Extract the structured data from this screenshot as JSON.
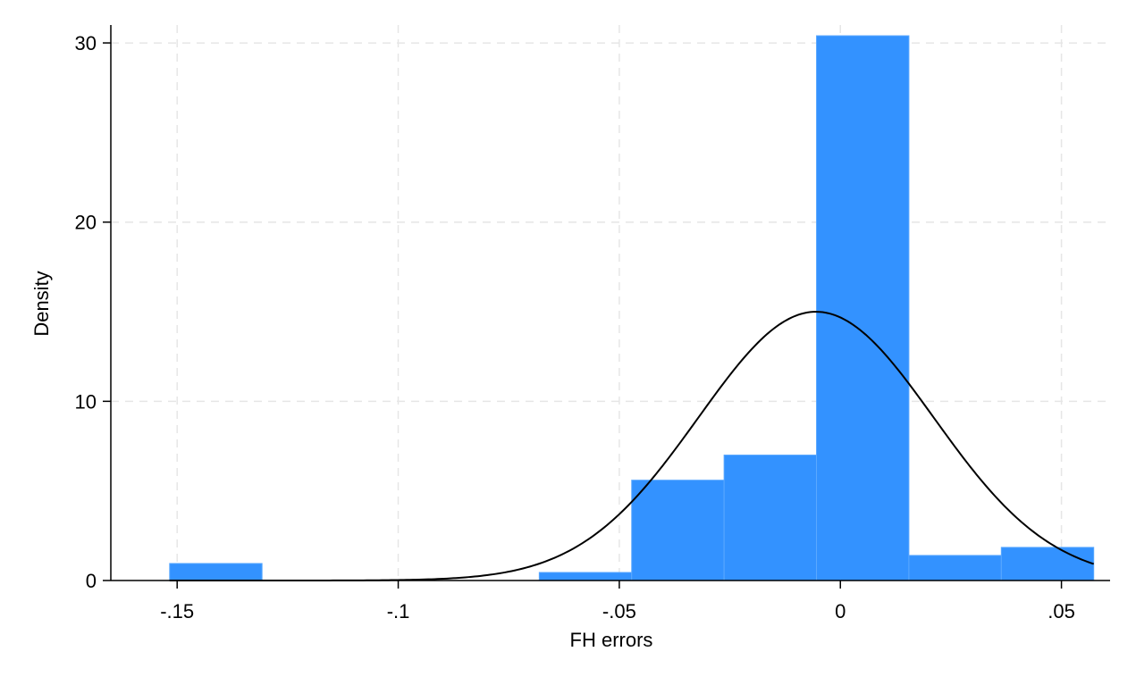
{
  "chart_data": {
    "type": "bar",
    "subtype": "histogram with normal density overlay",
    "title": "",
    "xlabel": "FH errors",
    "ylabel": "Density",
    "xlim": [
      -0.165,
      0.061
    ],
    "ylim": [
      0,
      31
    ],
    "x_ticks": [
      -0.15,
      -0.1,
      -0.05,
      0,
      0.05
    ],
    "x_tick_labels": [
      "-.15",
      "-.1",
      "-.05",
      "0",
      ".05"
    ],
    "y_ticks": [
      0,
      10,
      20,
      30
    ],
    "y_tick_labels": [
      "0",
      "10",
      "20",
      "30"
    ],
    "grid": true,
    "grid_style": "dashed",
    "legend": "none",
    "bar_color": "#3392ff",
    "bar_edge_color": "#5aa8ff",
    "bins": [
      {
        "x0": -0.1517,
        "x1": -0.1308,
        "density": 0.95
      },
      {
        "x0": -0.1308,
        "x1": -0.1099,
        "density": 0
      },
      {
        "x0": -0.1099,
        "x1": -0.089,
        "density": 0
      },
      {
        "x0": -0.089,
        "x1": -0.0681,
        "density": 0
      },
      {
        "x0": -0.0681,
        "x1": -0.0472,
        "density": 0.45
      },
      {
        "x0": -0.0472,
        "x1": -0.0263,
        "density": 5.6
      },
      {
        "x0": -0.0263,
        "x1": -0.0054,
        "density": 7.0
      },
      {
        "x0": -0.0054,
        "x1": 0.0155,
        "density": 30.4
      },
      {
        "x0": 0.0155,
        "x1": 0.0364,
        "density": 1.4
      },
      {
        "x0": 0.0364,
        "x1": 0.0573,
        "density": 1.85
      }
    ],
    "normal_curve": {
      "name": "normal density",
      "mean": -0.0055,
      "sd": 0.0266,
      "color": "#000000",
      "x_range": [
        -0.1517,
        0.0573
      ]
    }
  }
}
